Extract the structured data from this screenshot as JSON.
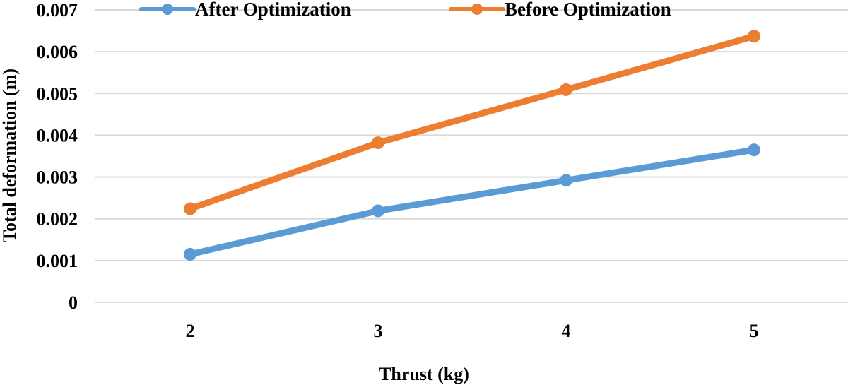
{
  "chart_data": {
    "type": "line",
    "title": "",
    "xlabel": "Thrust (kg)",
    "ylabel": "Total deformation (m)",
    "categories": [
      "2",
      "3",
      "4",
      "5"
    ],
    "ylim": [
      0,
      0.007
    ],
    "yticks": [
      "0",
      "0.001",
      "0.002",
      "0.003",
      "0.004",
      "0.005",
      "0.006",
      "0.007"
    ],
    "grid": true,
    "legend_position": "top",
    "series": [
      {
        "name": "After Optimization",
        "color": "#5b9bd5",
        "values": [
          0.00115,
          0.00219,
          0.00292,
          0.00365
        ]
      },
      {
        "name": "Before Optimization",
        "color": "#ed7d31",
        "values": [
          0.00224,
          0.00382,
          0.00509,
          0.00637
        ]
      }
    ]
  }
}
